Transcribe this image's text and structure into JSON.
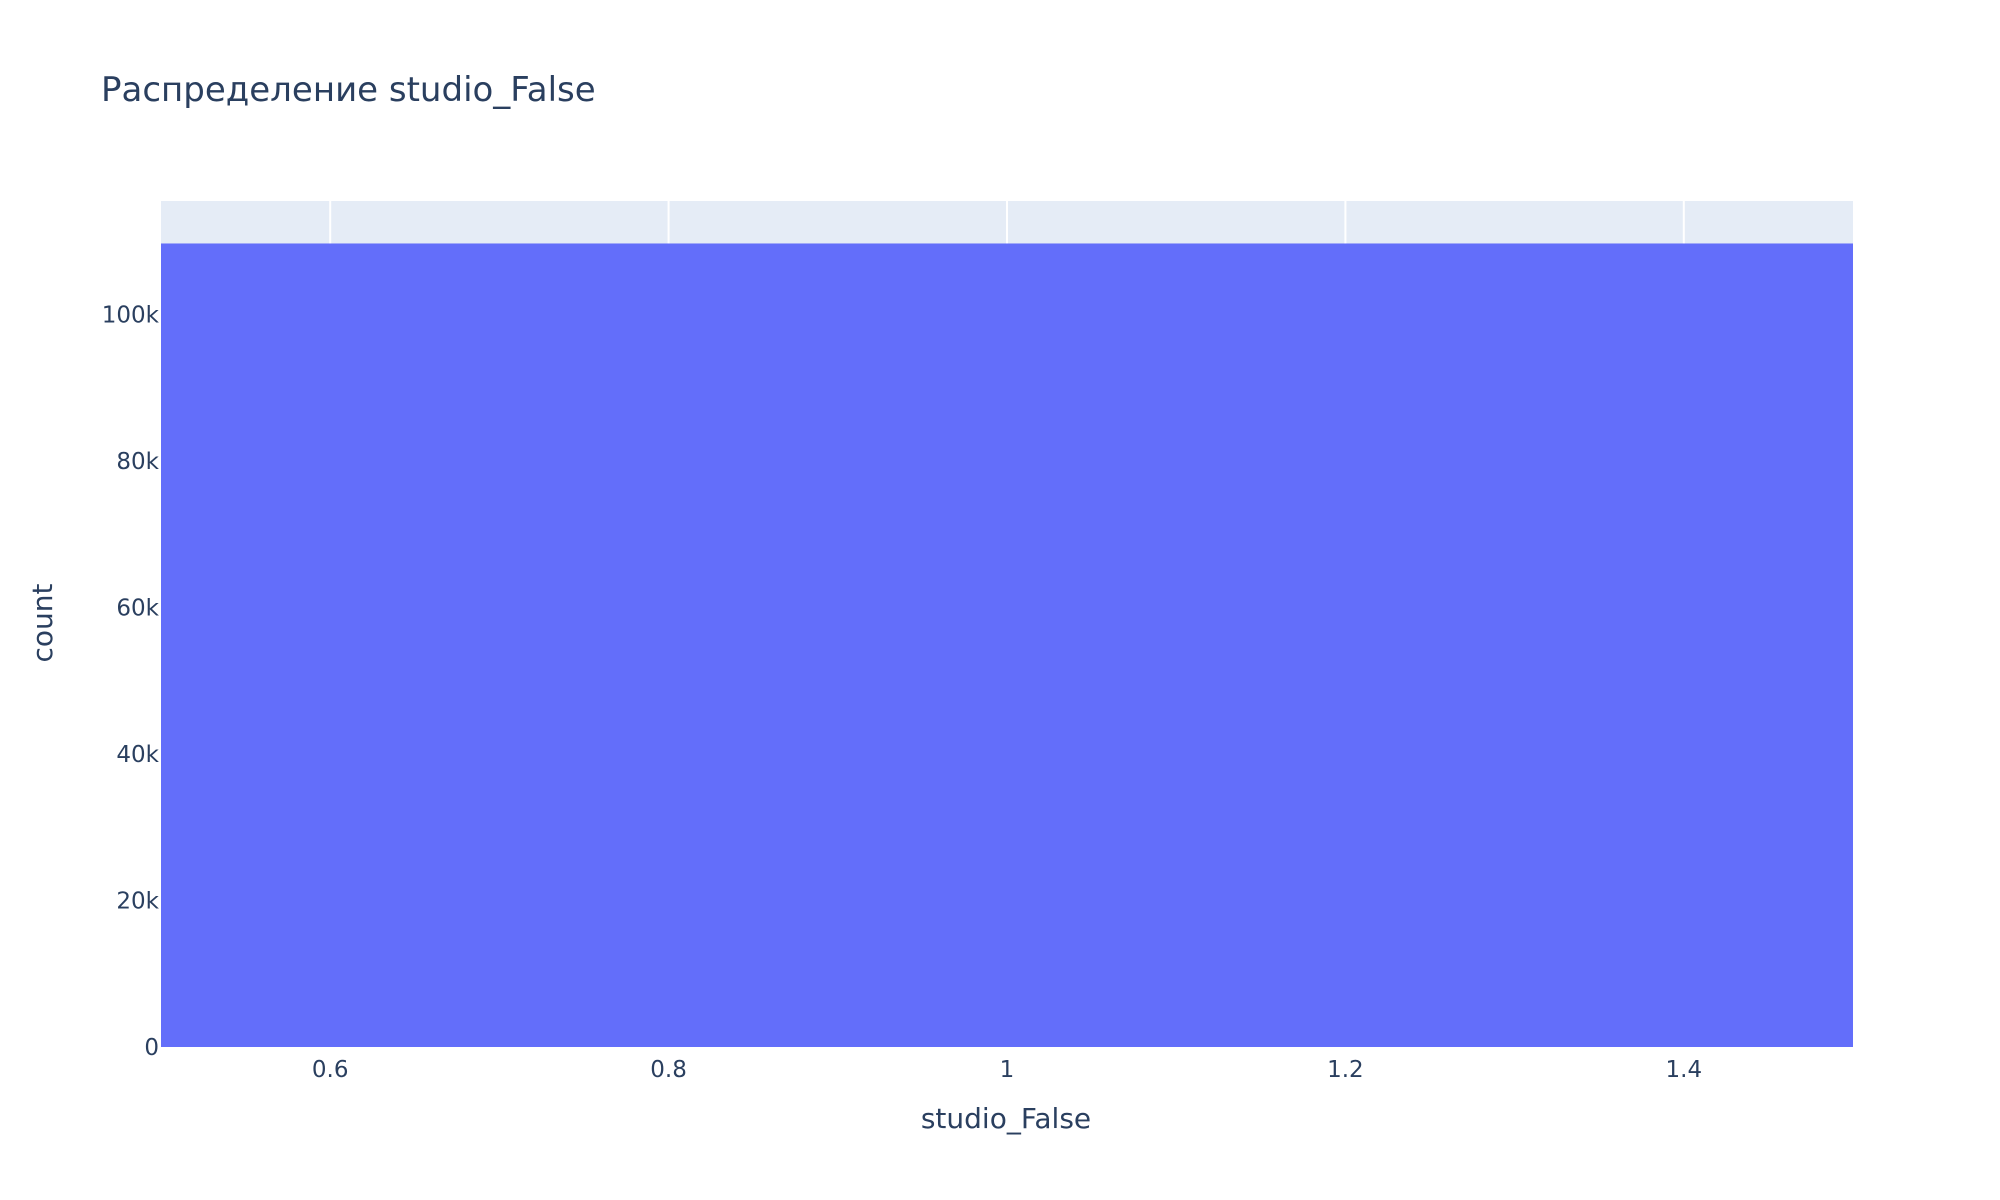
{
  "chart_data": {
    "type": "bar",
    "title": "Распределение studio_False",
    "xlabel": "studio_False",
    "ylabel": "count",
    "x": [
      1
    ],
    "values": [
      109700
    ],
    "bar_width": 1,
    "xlim": [
      0.5,
      1.5
    ],
    "ylim": [
      0,
      115500
    ],
    "x_ticks": [
      0.6,
      0.8,
      1,
      1.2,
      1.4
    ],
    "x_tick_labels": [
      "0.6",
      "0.8",
      "1",
      "1.2",
      "1.4"
    ],
    "y_ticks": [
      0,
      20000,
      40000,
      60000,
      80000,
      100000
    ],
    "y_tick_labels": [
      "0",
      "20k",
      "40k",
      "60k",
      "80k",
      "100k"
    ],
    "grid": true,
    "colors": {
      "bar": "#636efa",
      "plot_background": "#e5ecf6",
      "gridline": "#ffffff",
      "text": "#2a3f5f"
    }
  }
}
